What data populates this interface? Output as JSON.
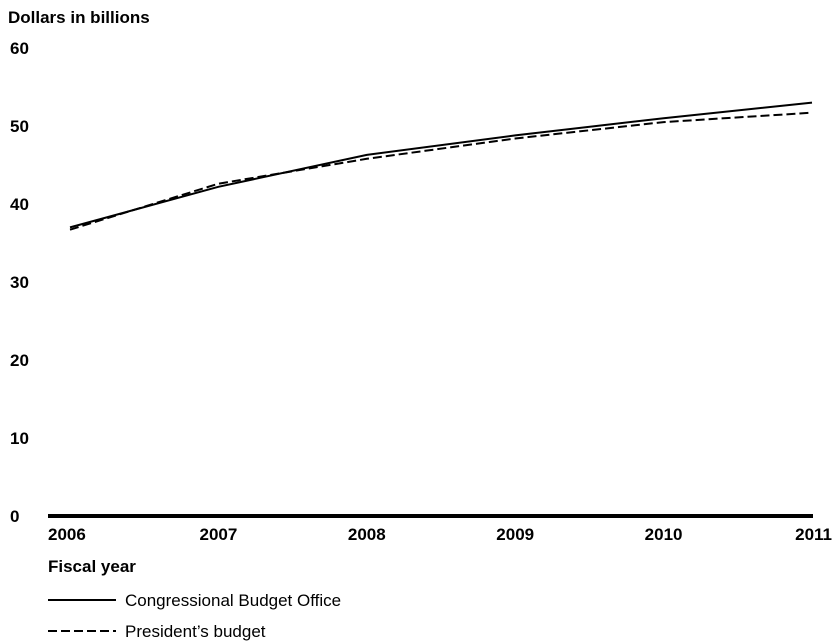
{
  "chart_data": {
    "type": "line",
    "ylabel": "Dollars in billions",
    "xlabel": "Fiscal year",
    "categories": [
      "2006",
      "2007",
      "2008",
      "2009",
      "2010",
      "2011"
    ],
    "ylim": [
      0,
      60
    ],
    "yticks": [
      "0",
      "10",
      "20",
      "30",
      "40",
      "50",
      "60"
    ],
    "grid": false,
    "legend_position": "bottom-left",
    "series": [
      {
        "name": "Congressional Budget Office",
        "style": "solid",
        "color": "#000000",
        "values": [
          37.0,
          42.2,
          46.3,
          48.8,
          51.0,
          53.0
        ]
      },
      {
        "name": "President’s budget",
        "style": "dashed",
        "color": "#000000",
        "values": [
          36.7,
          42.6,
          45.8,
          48.4,
          50.5,
          51.7
        ]
      }
    ]
  }
}
